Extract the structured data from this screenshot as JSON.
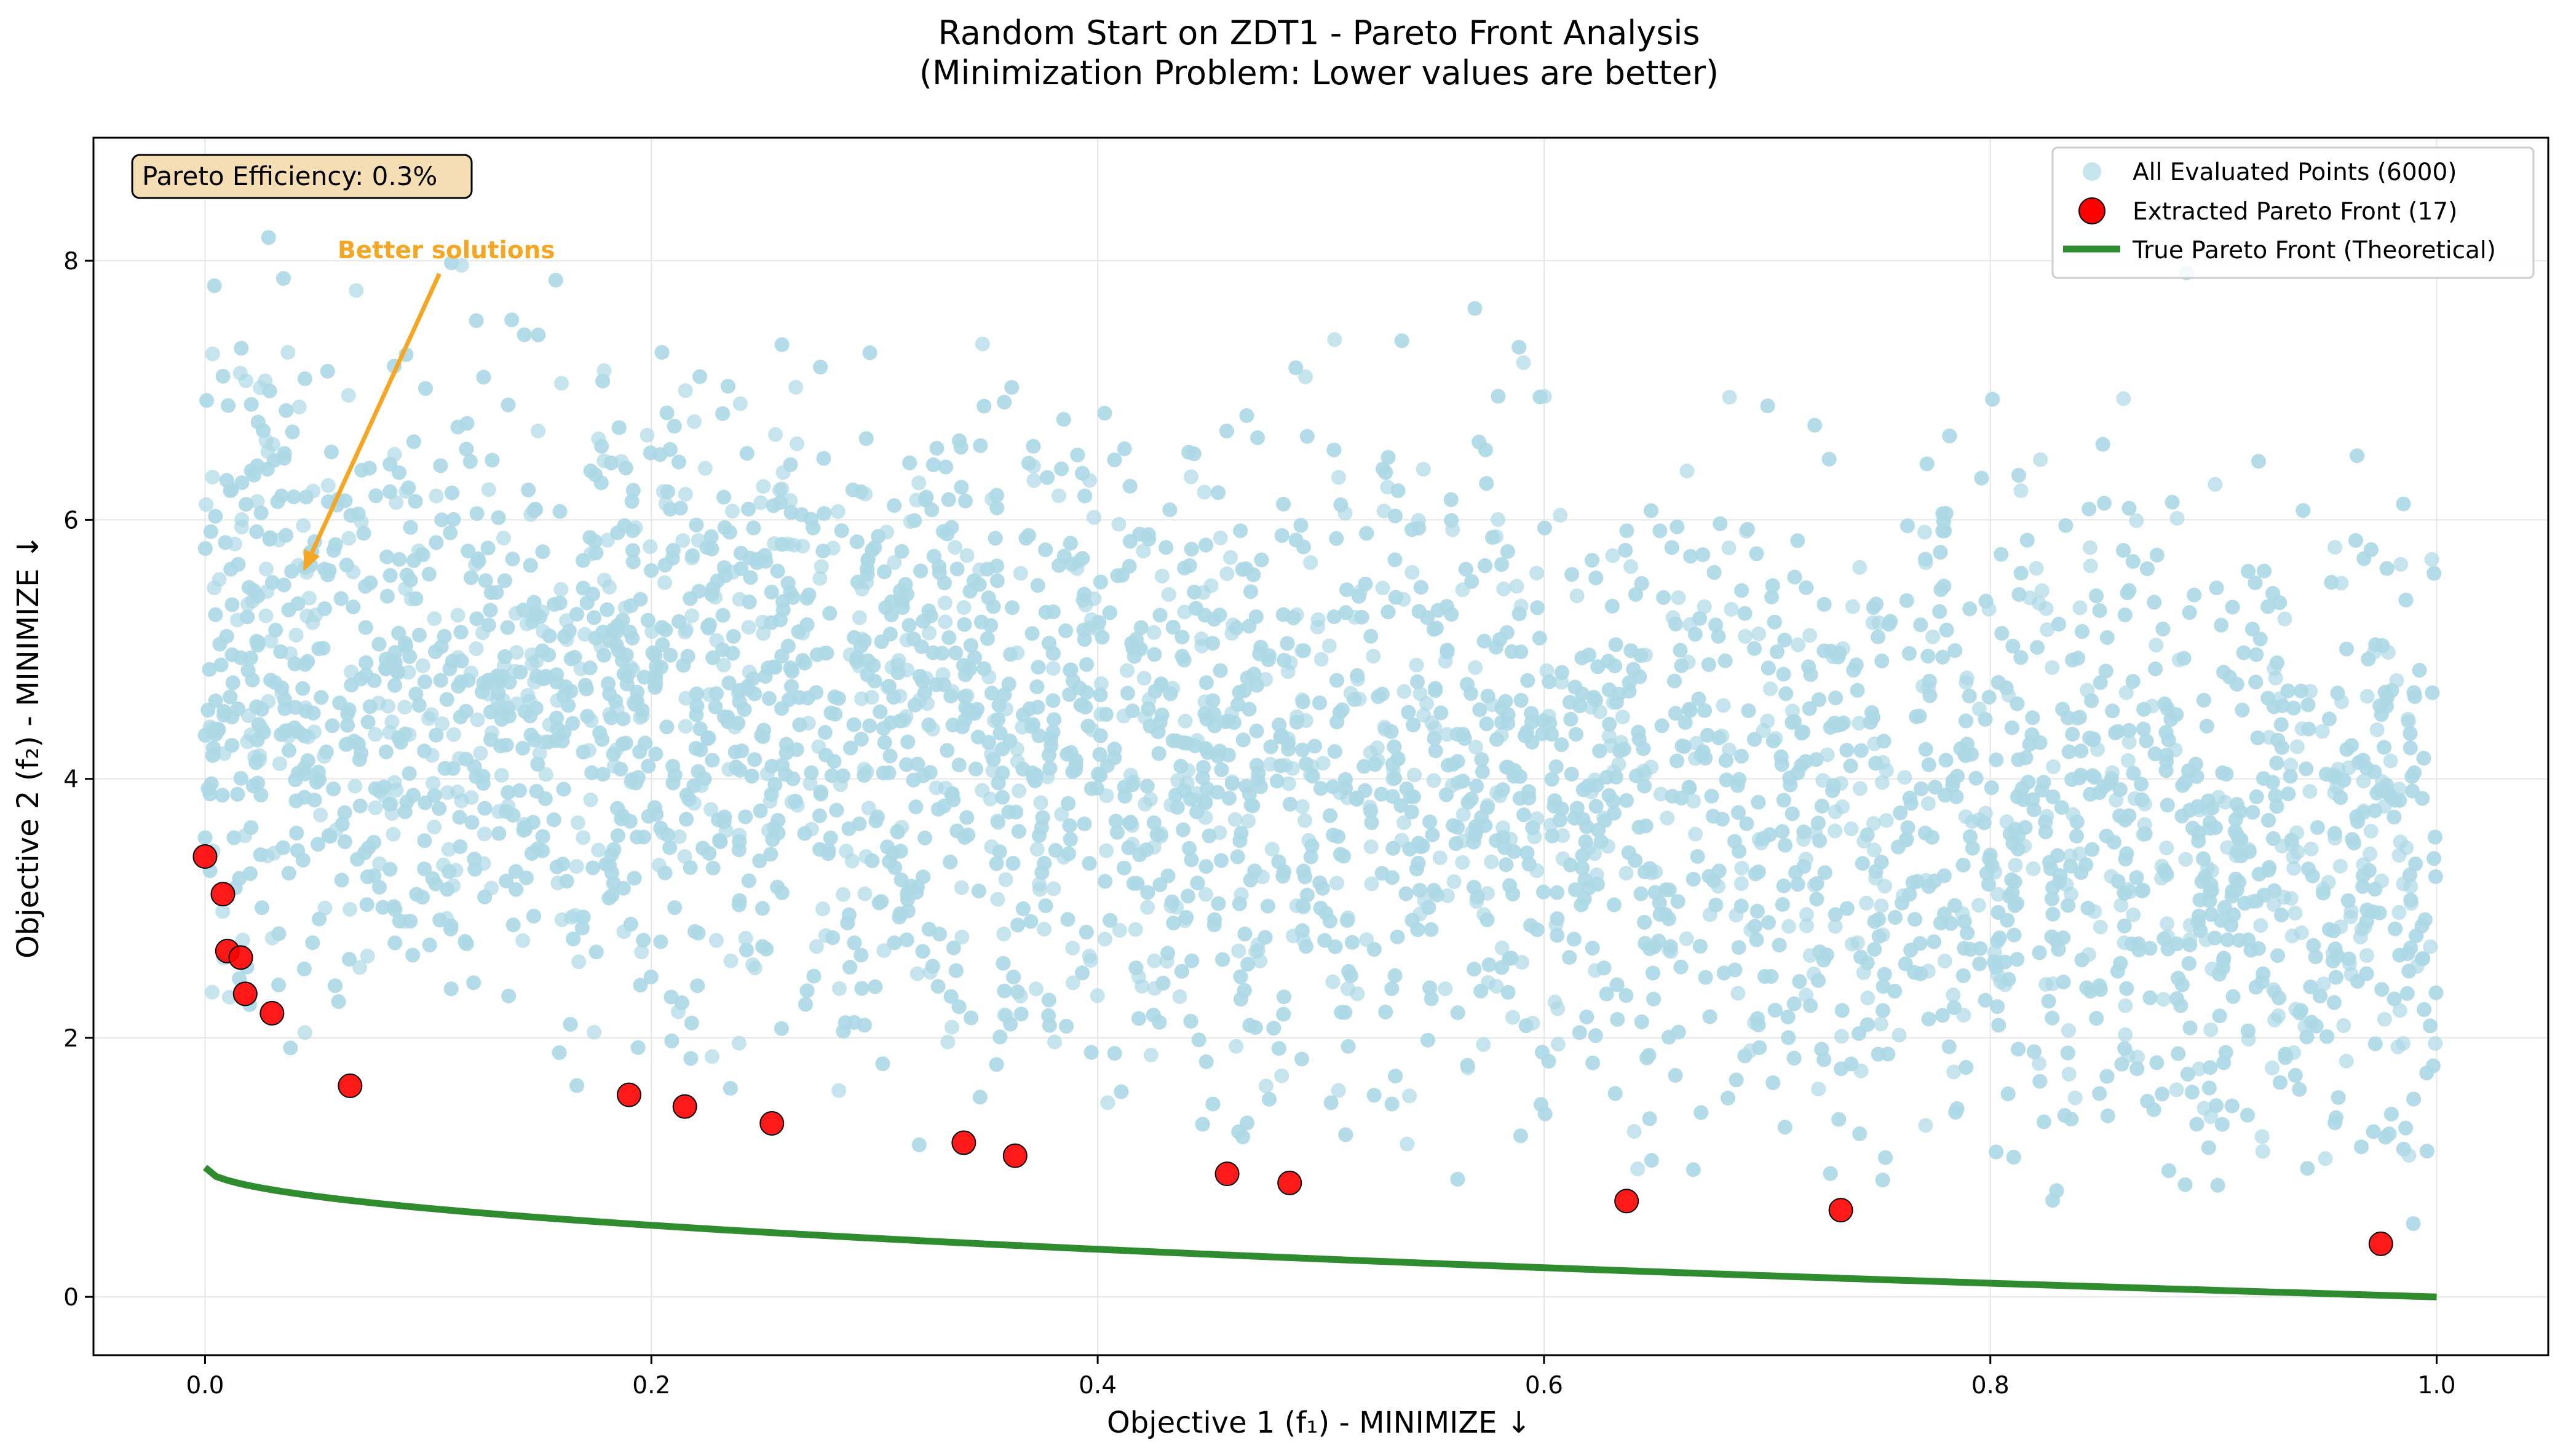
{
  "chart_data": {
    "type": "scatter",
    "title": "Random Start on ZDT1 - Pareto Front Analysis",
    "subtitle": "(Minimization Problem: Lower values are better)",
    "xlabel": "Objective 1 (f₁) - MINIMIZE ↓",
    "ylabel": "Objective 2 (f₂) - MINIMIZE ↓",
    "xlim": [
      -0.05,
      1.05
    ],
    "ylim": [
      -0.45,
      8.95
    ],
    "xticks": [
      0.0,
      0.2,
      0.4,
      0.6,
      0.8,
      1.0
    ],
    "xtick_labels": [
      "0.0",
      "0.2",
      "0.4",
      "0.6",
      "0.8",
      "1.0"
    ],
    "yticks": [
      0,
      2,
      4,
      6,
      8
    ],
    "ytick_labels": [
      "0",
      "2",
      "4",
      "6",
      "8"
    ],
    "grid": true,
    "legend_position": "top-right",
    "annotations": {
      "efficiency_box": "Pareto Efficiency: 0.3%",
      "arrow_label": "Better solutions",
      "arrow_from": [
        0.105,
        7.9
      ],
      "arrow_to": [
        0.044,
        5.6
      ]
    },
    "series": [
      {
        "name": "All Evaluated Points (6000)",
        "kind": "cloud",
        "count": 6000,
        "color": "#add8e6",
        "y_mean_at_x0": 4.9,
        "y_mean_at_x1": 3.3,
        "y_spread": 1.2
      },
      {
        "name": "Extracted Pareto Front (17)",
        "kind": "points",
        "color": "#ff0000",
        "x": [
          0.0,
          0.008,
          0.01,
          0.016,
          0.018,
          0.03,
          0.065,
          0.19,
          0.215,
          0.254,
          0.34,
          0.363,
          0.458,
          0.486,
          0.637,
          0.733,
          0.975
        ],
        "y": [
          3.4,
          3.11,
          2.67,
          2.62,
          2.34,
          2.19,
          1.63,
          1.56,
          1.47,
          1.34,
          1.19,
          1.09,
          0.95,
          0.88,
          0.74,
          0.67,
          0.41
        ]
      },
      {
        "name": "True Pareto Front (Theoretical)",
        "kind": "line",
        "color": "#2e8b2e",
        "formula": "f2 = 1 - sqrt(f1)"
      }
    ]
  }
}
